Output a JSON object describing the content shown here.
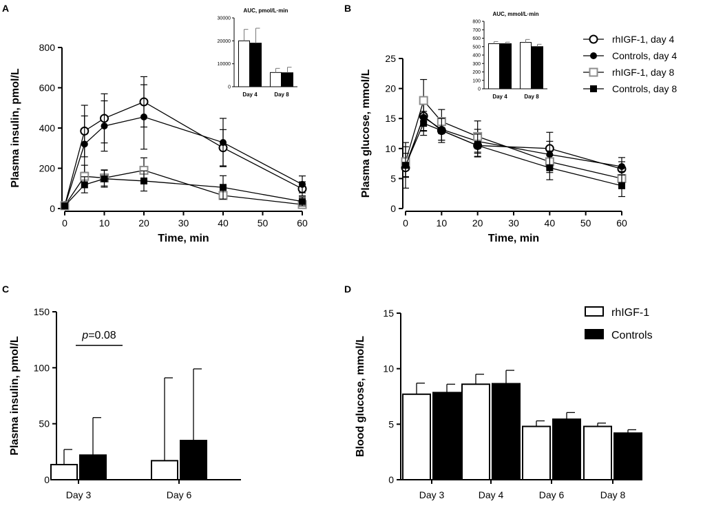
{
  "chart_data": [
    {
      "panel": "A",
      "type": "line",
      "xlabel": "Time, min",
      "ylabel": "Plasma insulin, pmol/L",
      "xlim": [
        0,
        60
      ],
      "ylim": [
        0,
        800
      ],
      "xticks": [
        0,
        10,
        20,
        30,
        40,
        50,
        60
      ],
      "yticks": [
        0,
        200,
        400,
        600,
        800
      ],
      "series": [
        {
          "name": "rhIGF-1, day 4",
          "marker": "open-circle",
          "x": [
            0,
            5,
            10,
            20,
            40,
            60
          ],
          "values": [
            15,
            385,
            448,
            530,
            302,
            98
          ],
          "errors": [
            8,
            128,
            122,
            125,
            90,
            35
          ]
        },
        {
          "name": "Controls, day 4",
          "marker": "filled-circle",
          "x": [
            0,
            5,
            10,
            20,
            40,
            60
          ],
          "values": [
            12,
            320,
            410,
            455,
            328,
            120
          ],
          "errors": [
            8,
            140,
            125,
            160,
            120,
            42
          ]
        },
        {
          "name": "rhIGF-1, day 8",
          "marker": "open-square",
          "x": [
            0,
            5,
            10,
            20,
            40,
            60
          ],
          "values": [
            14,
            160,
            152,
            190,
            65,
            20
          ],
          "errors": [
            5,
            55,
            40,
            62,
            20,
            15
          ]
        },
        {
          "name": "Controls, day 8",
          "marker": "filled-square",
          "x": [
            0,
            5,
            10,
            20,
            40,
            60
          ],
          "values": [
            13,
            118,
            148,
            137,
            105,
            35
          ],
          "errors": [
            5,
            40,
            42,
            50,
            58,
            22
          ]
        }
      ],
      "inset": {
        "type": "bar",
        "title": "AUC, pmol/L·min",
        "categories": [
          "Day 4",
          "Day 8"
        ],
        "ylim": [
          0,
          30000
        ],
        "yticks": [
          0,
          10000,
          20000,
          30000
        ],
        "series": [
          {
            "name": "rhIGF-1",
            "values": [
              20000,
              6200
            ],
            "errors": [
              5000,
              1800
            ]
          },
          {
            "name": "Controls",
            "values": [
              19000,
              6100
            ],
            "errors": [
              6500,
              2400
            ]
          }
        ]
      }
    },
    {
      "panel": "B",
      "type": "line",
      "xlabel": "Time, min",
      "ylabel": "Plasma glucose, mmol/L",
      "xlim": [
        0,
        60
      ],
      "ylim": [
        0,
        25
      ],
      "xticks": [
        0,
        10,
        20,
        30,
        40,
        50,
        60
      ],
      "yticks": [
        0,
        5,
        10,
        15,
        20,
        25
      ],
      "series": [
        {
          "name": "rhIGF-1, day 4",
          "marker": "open-circle",
          "x": [
            0,
            5,
            10,
            20,
            40,
            60
          ],
          "values": [
            6.8,
            15.4,
            13.0,
            10.5,
            10.0,
            6.6
          ],
          "errors": [
            1.5,
            2.5,
            1.6,
            1.8,
            2.7,
            1.2
          ]
        },
        {
          "name": "Controls, day 4",
          "marker": "filled-circle",
          "x": [
            0,
            5,
            10,
            20,
            40,
            60
          ],
          "values": [
            7.2,
            15.2,
            13.2,
            11.2,
            9.0,
            7.0
          ],
          "errors": [
            2.0,
            2.2,
            1.8,
            2.0,
            2.2,
            1.5
          ]
        },
        {
          "name": "rhIGF-1, day 8",
          "marker": "open-square",
          "x": [
            0,
            5,
            10,
            20,
            40,
            60
          ],
          "values": [
            7.8,
            18.0,
            14.5,
            12.0,
            7.8,
            5.0
          ],
          "errors": [
            2.5,
            3.5,
            2.0,
            2.6,
            1.8,
            1.2
          ]
        },
        {
          "name": "Controls, day 8",
          "marker": "filled-square",
          "x": [
            0,
            5,
            10,
            20,
            40,
            60
          ],
          "values": [
            7.2,
            14.2,
            13.0,
            10.5,
            6.8,
            3.8
          ],
          "errors": [
            3.8,
            2.0,
            2.0,
            1.9,
            2.0,
            1.8
          ]
        }
      ],
      "legend": {
        "position": "right",
        "entries": [
          "rhIGF-1, day 4",
          "Controls, day 4",
          "rhIGF-1, day 8",
          "Controls, day 8"
        ]
      },
      "inset": {
        "type": "bar",
        "title": "AUC, mmol/L·min",
        "categories": [
          "Day 4",
          "Day 8"
        ],
        "ylim": [
          0,
          800
        ],
        "yticks": [
          0,
          100,
          200,
          300,
          400,
          500,
          600,
          700,
          800
        ],
        "series": [
          {
            "name": "rhIGF-1",
            "values": [
              535,
              550
            ],
            "errors": [
              25,
              35
            ]
          },
          {
            "name": "Controls",
            "values": [
              535,
              500
            ],
            "errors": [
              18,
              28
            ]
          }
        ]
      }
    },
    {
      "panel": "C",
      "type": "bar",
      "ylabel": "Plasma insulin, pmol/L",
      "categories": [
        "Day 3",
        "Day 6"
      ],
      "ylim": [
        0,
        150
      ],
      "yticks": [
        0,
        50,
        100,
        150
      ],
      "series": [
        {
          "name": "rhIGF-1",
          "values": [
            13.5,
            17
          ],
          "errors": [
            13.5,
            74
          ]
        },
        {
          "name": "Controls",
          "values": [
            22,
            35
          ],
          "errors": [
            33.5,
            64
          ]
        }
      ],
      "annotation": {
        "prefix": "p",
        "text": "=0.08",
        "y": 120
      }
    },
    {
      "panel": "D",
      "type": "bar",
      "ylabel": "Blood glucose, mmol/L",
      "categories": [
        "Day 3",
        "Day 4",
        "Day 6",
        "Day 8"
      ],
      "ylim": [
        0,
        15
      ],
      "yticks": [
        0,
        5,
        10,
        15
      ],
      "series": [
        {
          "name": "rhIGF-1",
          "values": [
            7.7,
            8.6,
            4.8,
            4.8
          ],
          "errors": [
            1.0,
            0.9,
            0.5,
            0.3
          ]
        },
        {
          "name": "Controls",
          "values": [
            7.85,
            8.65,
            5.45,
            4.2
          ],
          "errors": [
            0.75,
            1.2,
            0.6,
            0.3
          ]
        }
      ],
      "legend": {
        "position": "top-right",
        "entries": [
          "rhIGF-1",
          "Controls"
        ]
      }
    }
  ]
}
